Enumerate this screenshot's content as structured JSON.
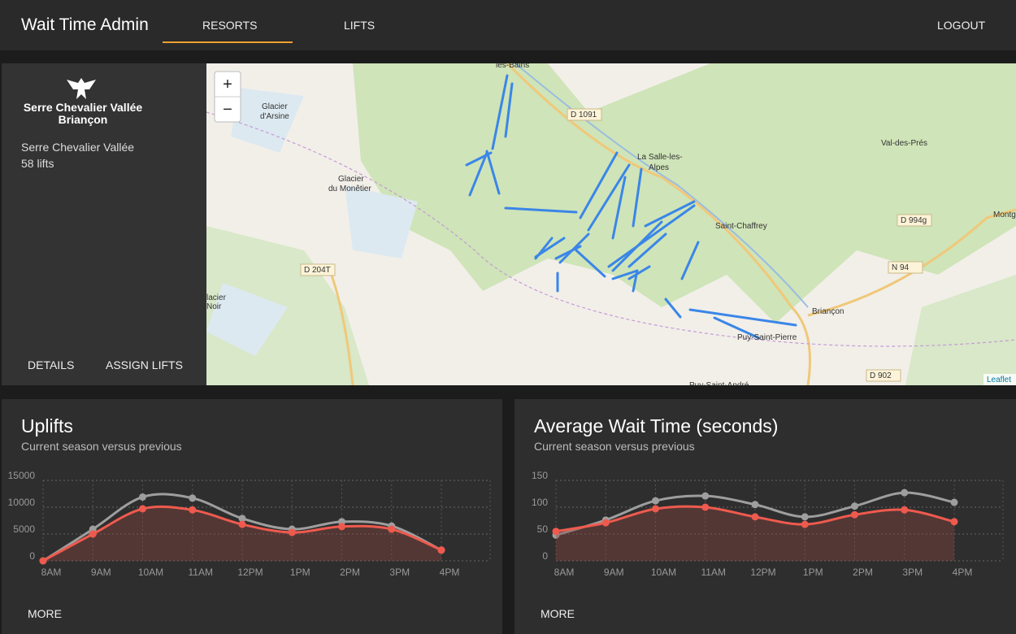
{
  "header": {
    "title": "Wait Time Admin",
    "nav": [
      "RESORTS",
      "LIFTS"
    ],
    "logout": "LOGOUT"
  },
  "resort": {
    "logo_line1": "Serre Chevalier Vallée",
    "logo_line2": "Briançon",
    "name": "Serre Chevalier Vallée",
    "lifts": "58 lifts",
    "actions": [
      "DETAILS",
      "ASSIGN LIFTS"
    ]
  },
  "map": {
    "zoom_in": "+",
    "zoom_out": "−",
    "attribution": "Leaflet",
    "labels": [
      "les-Bains",
      "D 1091",
      "Glacier",
      "d'Arsine",
      "Glacier",
      "du Monêtier",
      "La Salle-les-",
      "Alpes",
      "Saint-Chaffrey",
      "Val-des-Prés",
      "D 994g",
      "Montgen",
      "N 94",
      "Briançon",
      "Puy-Saint-Pierre",
      "D 204T",
      "lacier",
      "Noir",
      "D 902",
      "Puy-Saint-André"
    ]
  },
  "chart_data": [
    {
      "type": "line",
      "title": "Uplifts",
      "subtitle": "Current season versus previous",
      "categories": [
        "8AM",
        "9AM",
        "10AM",
        "11AM",
        "12PM",
        "1PM",
        "2PM",
        "3PM",
        "4PM"
      ],
      "series": [
        {
          "color": "#9e9e9e",
          "values": [
            0,
            5900,
            11900,
            11700,
            7900,
            5900,
            7300,
            6500,
            2000
          ]
        },
        {
          "color": "#ef5a4e",
          "values": [
            0,
            5000,
            9700,
            9500,
            6800,
            5300,
            6400,
            5900,
            2000
          ],
          "area": true
        }
      ],
      "ylim": [
        0,
        15000
      ],
      "yticks": [
        0,
        5000,
        10000,
        15000
      ],
      "grid": true,
      "more": "MORE"
    },
    {
      "type": "line",
      "title": "Average Wait Time (seconds)",
      "subtitle": "Current season versus previous",
      "categories": [
        "8AM",
        "9AM",
        "10AM",
        "11AM",
        "12PM",
        "1PM",
        "2PM",
        "3PM",
        "4PM"
      ],
      "series": [
        {
          "color": "#9e9e9e",
          "values": [
            48,
            76,
            112,
            121,
            105,
            82,
            102,
            127,
            109
          ]
        },
        {
          "color": "#ef5a4e",
          "values": [
            55,
            71,
            97,
            100,
            82,
            68,
            86,
            95,
            73
          ],
          "area": true
        }
      ],
      "ylim": [
        0,
        150
      ],
      "yticks": [
        0,
        50,
        100,
        150
      ],
      "grid": true,
      "more": "MORE"
    }
  ]
}
